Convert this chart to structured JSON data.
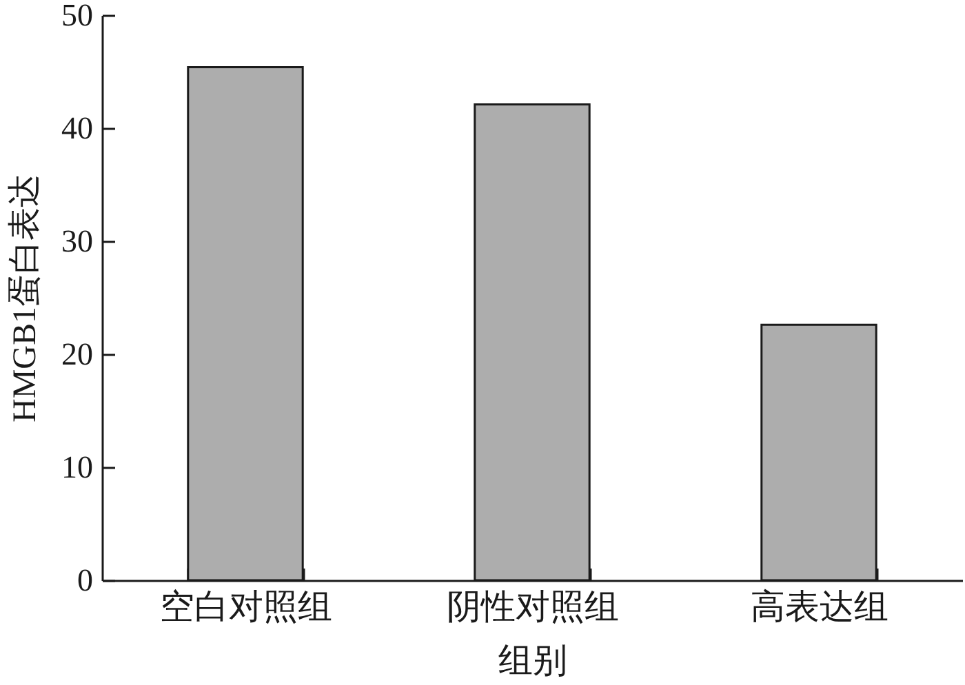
{
  "chart_data": {
    "type": "bar",
    "xlabel": "组别",
    "ylabel": "HMGB1蛋白表达",
    "categories": [
      "空白对照组",
      "阴性对照组",
      "高表达组"
    ],
    "values": [
      45.4,
      42.1,
      22.6
    ],
    "color": "#adadad",
    "ylim": [
      0,
      50
    ],
    "yticks": [
      0,
      10,
      20,
      30,
      40,
      50
    ]
  }
}
